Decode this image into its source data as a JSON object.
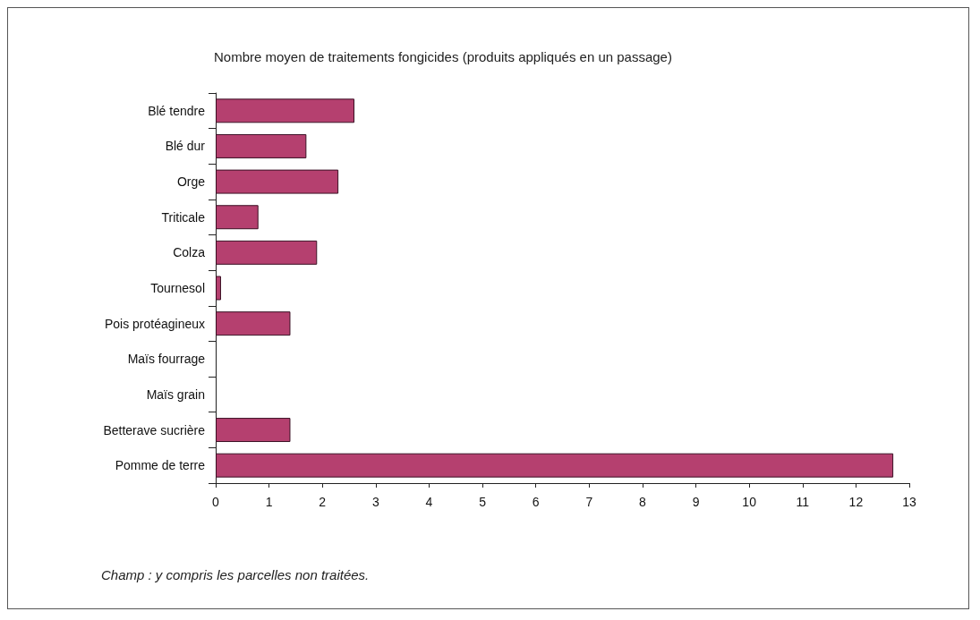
{
  "chart_data": {
    "type": "bar",
    "orientation": "horizontal",
    "title": "Nombre moyen de traitements fongicides (produits appliqués en un passage)",
    "categories": [
      "Blé tendre",
      "Blé dur",
      "Orge",
      "Triticale",
      "Colza",
      "Tournesol",
      "Pois protéagineux",
      "Maïs fourrage",
      "Maïs grain",
      "Betterave sucrière",
      "Pomme de terre"
    ],
    "values": [
      2.6,
      1.7,
      2.3,
      0.8,
      1.9,
      0.1,
      1.4,
      0,
      0,
      1.4,
      12.7
    ],
    "color": "#b5406f",
    "xlim": [
      0,
      13
    ],
    "xticks": [
      0,
      1,
      2,
      3,
      4,
      5,
      6,
      7,
      8,
      9,
      10,
      11,
      12,
      13
    ],
    "grid": false,
    "annotations": [
      "Champ : y compris les parcelles non traitées."
    ]
  }
}
